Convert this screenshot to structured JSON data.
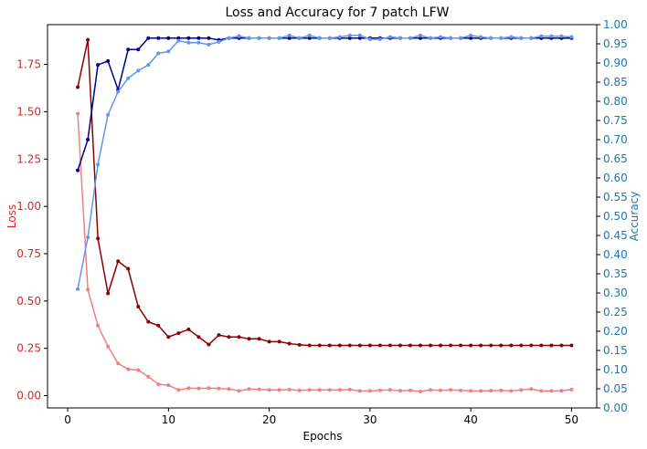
{
  "chart_data": {
    "type": "line",
    "title": "Loss and Accuracy for 7 patch LFW",
    "xlabel": "Epochs",
    "ylabel_left": "Loss",
    "ylabel_right": "Accuracy",
    "xlim": [
      -2,
      52.5
    ],
    "ylim_left": [
      -0.065,
      1.96
    ],
    "ylim_right": [
      0.0,
      1.0
    ],
    "x_ticks": [
      "0",
      "10",
      "20",
      "30",
      "40",
      "50"
    ],
    "left_ticks": [
      "0.00",
      "0.25",
      "0.50",
      "0.75",
      "1.00",
      "1.25",
      "1.50",
      "1.75"
    ],
    "right_ticks": [
      "0.00",
      "0.05",
      "0.10",
      "0.15",
      "0.20",
      "0.25",
      "0.30",
      "0.35",
      "0.40",
      "0.45",
      "0.50",
      "0.55",
      "0.60",
      "0.65",
      "0.70",
      "0.75",
      "0.80",
      "0.85",
      "0.90",
      "0.95",
      "1.00"
    ],
    "grid": false,
    "colors": {
      "left_axis": "#d62728",
      "right_axis": "#1f77b4",
      "train_loss": "#8b0000",
      "val_loss": "#f08080",
      "train_acc": "#00008b",
      "val_acc": "#6495ed"
    },
    "x": [
      1,
      2,
      3,
      4,
      5,
      6,
      7,
      8,
      9,
      10,
      11,
      12,
      13,
      14,
      15,
      16,
      17,
      18,
      19,
      20,
      21,
      22,
      23,
      24,
      25,
      26,
      27,
      28,
      29,
      30,
      31,
      32,
      33,
      34,
      35,
      36,
      37,
      38,
      39,
      40,
      41,
      42,
      43,
      44,
      45,
      46,
      47,
      48,
      49,
      50
    ],
    "series": [
      {
        "key": "train_loss",
        "axis": "left",
        "values": [
          1.63,
          1.88,
          0.83,
          0.54,
          0.71,
          0.67,
          0.47,
          0.39,
          0.37,
          0.31,
          0.33,
          0.35,
          0.31,
          0.27,
          0.32,
          0.31,
          0.31,
          0.3,
          0.3,
          0.285,
          0.285,
          0.275,
          0.268,
          0.265,
          0.265,
          0.265,
          0.265,
          0.265,
          0.265,
          0.265,
          0.265,
          0.265,
          0.265,
          0.265,
          0.265,
          0.265,
          0.265,
          0.265,
          0.265,
          0.265,
          0.265,
          0.265,
          0.265,
          0.265,
          0.265,
          0.265,
          0.265,
          0.265,
          0.265,
          0.265
        ]
      },
      {
        "key": "val_loss",
        "axis": "left",
        "values": [
          1.49,
          0.56,
          0.37,
          0.26,
          0.17,
          0.14,
          0.135,
          0.1,
          0.06,
          0.055,
          0.03,
          0.04,
          0.038,
          0.04,
          0.038,
          0.035,
          0.025,
          0.035,
          0.033,
          0.03,
          0.03,
          0.032,
          0.028,
          0.03,
          0.03,
          0.03,
          0.03,
          0.032,
          0.025,
          0.025,
          0.028,
          0.03,
          0.026,
          0.028,
          0.022,
          0.03,
          0.028,
          0.03,
          0.028,
          0.025,
          0.025,
          0.026,
          0.028,
          0.025,
          0.03,
          0.035,
          0.025,
          0.025,
          0.026,
          0.032
        ]
      },
      {
        "key": "train_acc",
        "axis": "right",
        "values": [
          0.62,
          0.7,
          0.895,
          0.905,
          0.83,
          0.935,
          0.935,
          0.965,
          0.965,
          0.965,
          0.965,
          0.965,
          0.965,
          0.965,
          0.96,
          0.965,
          0.965,
          0.965,
          0.965,
          0.965,
          0.965,
          0.965,
          0.965,
          0.965,
          0.965,
          0.965,
          0.965,
          0.965,
          0.965,
          0.965,
          0.965,
          0.965,
          0.965,
          0.965,
          0.965,
          0.965,
          0.965,
          0.965,
          0.965,
          0.965,
          0.965,
          0.965,
          0.965,
          0.965,
          0.965,
          0.965,
          0.965,
          0.965,
          0.965,
          0.965
        ]
      },
      {
        "key": "val_acc",
        "axis": "right",
        "values": [
          0.31,
          0.445,
          0.635,
          0.765,
          0.825,
          0.86,
          0.88,
          0.895,
          0.925,
          0.93,
          0.958,
          0.953,
          0.953,
          0.948,
          0.955,
          0.965,
          0.97,
          0.965,
          0.965,
          0.965,
          0.965,
          0.972,
          0.965,
          0.972,
          0.965,
          0.965,
          0.968,
          0.972,
          0.972,
          0.962,
          0.962,
          0.968,
          0.965,
          0.965,
          0.972,
          0.965,
          0.968,
          0.965,
          0.965,
          0.972,
          0.968,
          0.965,
          0.965,
          0.968,
          0.965,
          0.965,
          0.97,
          0.97,
          0.97,
          0.968
        ]
      }
    ]
  }
}
